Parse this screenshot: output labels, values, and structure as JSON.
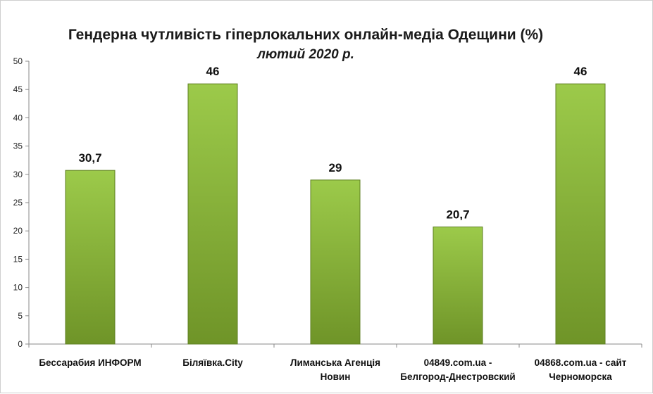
{
  "chart_data": {
    "type": "bar",
    "title": "Гендерна чутливість гіперлокальних онлайн-медіа Одещини (%)",
    "subtitle": "лютий 2020 р.",
    "categories": [
      [
        "Бессарабия ИНФОРМ"
      ],
      [
        "Біляївка.City"
      ],
      [
        "Лиманська Агенція",
        "Новин"
      ],
      [
        "04849.com.ua -",
        "Белгород-Днестровский"
      ],
      [
        "04868.com.ua - сайт",
        "Черноморска"
      ]
    ],
    "values": [
      30.7,
      46,
      29,
      20.7,
      46
    ],
    "data_labels": [
      "30,7",
      "46",
      "29",
      "20,7",
      "46"
    ],
    "ylim": [
      0,
      50
    ],
    "yticks": [
      "0",
      "5",
      "10",
      "15",
      "20",
      "25",
      "30",
      "35",
      "40",
      "45",
      "50"
    ],
    "grid": false,
    "legend": "none",
    "bar_color_top": "#9cca4a",
    "bar_color_bottom": "#6f9428",
    "bar_stroke": "#5e7f22"
  }
}
